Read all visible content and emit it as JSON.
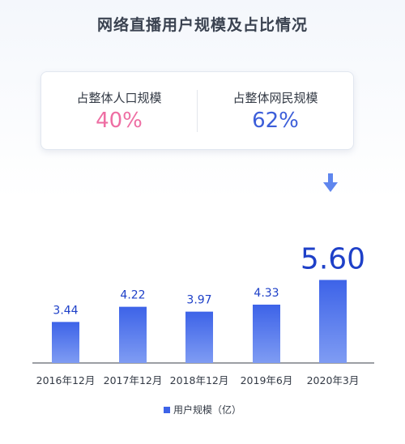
{
  "title": "网络直播用户规模及占比情况",
  "stats": [
    {
      "label": "占整体人口规模",
      "value": "40%"
    },
    {
      "label": "占整体网民规模",
      "value": "62%"
    }
  ],
  "chart_data": {
    "type": "bar",
    "categories": [
      "2016年12月",
      "2017年12月",
      "2018年12月",
      "2019年6月",
      "2020年3月"
    ],
    "series": [
      {
        "name": "用户规模（亿）",
        "values": [
          3.44,
          4.22,
          3.97,
          4.33,
          5.6
        ]
      }
    ],
    "data_labels": [
      "3.44",
      "4.22",
      "3.97",
      "4.33",
      "5.60"
    ],
    "highlight_index": 4,
    "legend": "bottom-center",
    "grid": false,
    "colors": {
      "bar_top": "#3d63e8",
      "bar_bottom": "#7f9cf3",
      "label": "#1e40c8"
    }
  }
}
